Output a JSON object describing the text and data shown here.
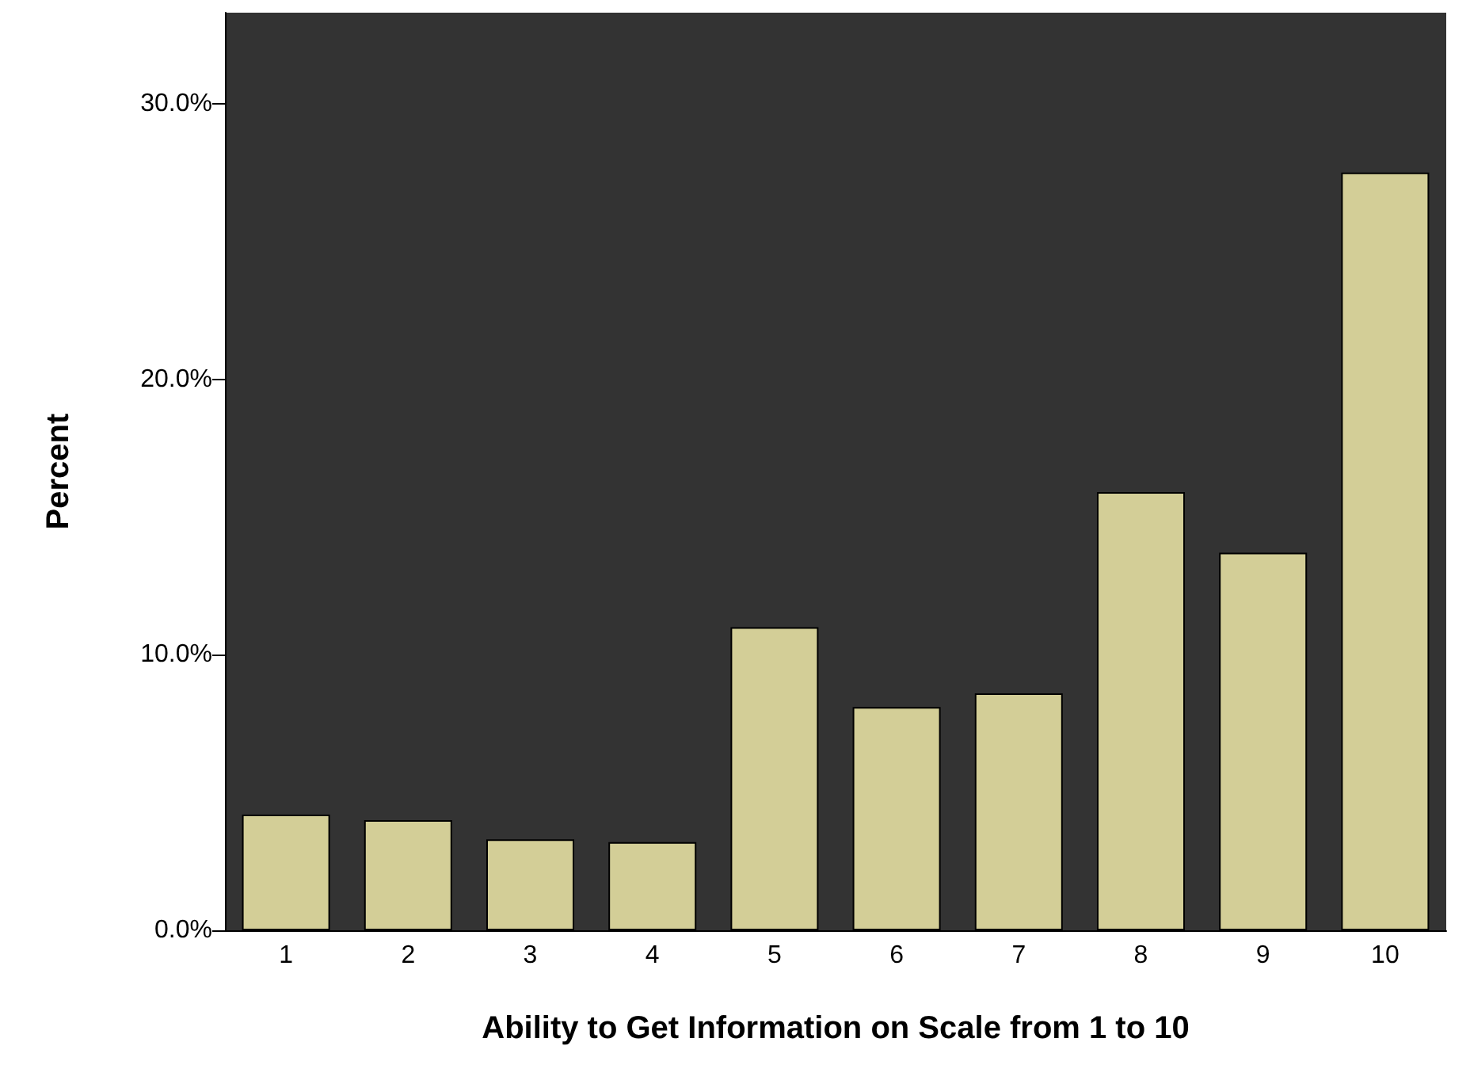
{
  "chart_data": {
    "type": "bar",
    "xlabel": "Ability to Get Information on Scale from 1 to 10",
    "ylabel": "Percent",
    "categories": [
      "1",
      "2",
      "3",
      "4",
      "5",
      "6",
      "7",
      "8",
      "9",
      "10"
    ],
    "values": [
      4.2,
      4.0,
      3.3,
      3.2,
      11.0,
      8.1,
      8.6,
      15.9,
      13.7,
      27.5
    ],
    "color": "#d3ce97",
    "ylim": [
      0,
      33.3
    ],
    "yticks": [
      {
        "value": 0,
        "label": "0.0%"
      },
      {
        "value": 10,
        "label": "10.0%"
      },
      {
        "value": 20,
        "label": "20.0%"
      },
      {
        "value": 30,
        "label": "30.0%"
      }
    ],
    "grid": false
  }
}
